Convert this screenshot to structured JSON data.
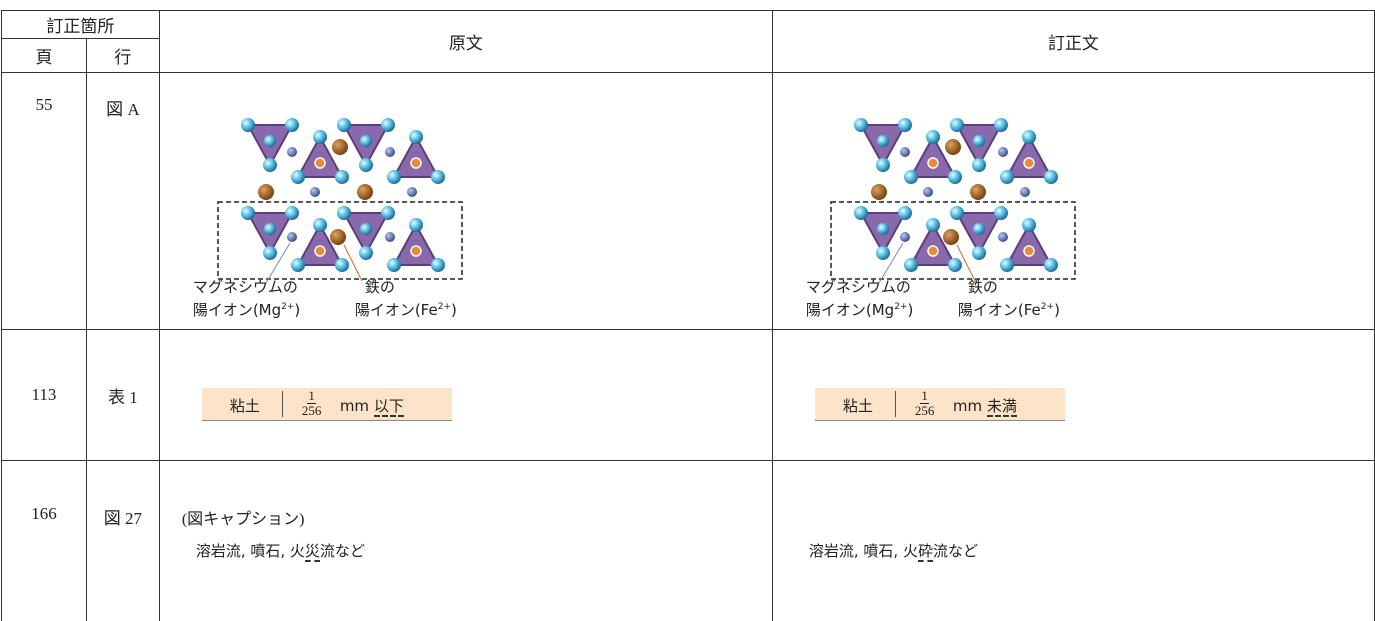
{
  "header": {
    "location": "訂正箇所",
    "page": "頁",
    "line": "行",
    "original": "原文",
    "corrected": "訂正文"
  },
  "rows": [
    {
      "page": "55",
      "line": "図 A",
      "original": {
        "mg_label": "マグネシウムの",
        "mg_ion": "陽イオン(Mg",
        "mg_charge": "2+",
        "mg_close": ")",
        "fe_label": "鉄の",
        "fe_ion": "陽イオン(Fe",
        "fe_charge": "2+",
        "fe_close": ")"
      },
      "corrected": {
        "mg_label": "マグネシウムの",
        "mg_ion": "陽イオン(Mg",
        "mg_charge": "2+",
        "mg_close": ")",
        "fe_label": "鉄の",
        "fe_ion": "陽イオン(Fe",
        "fe_charge": "2+",
        "fe_close": ")"
      }
    },
    {
      "page": "113",
      "line": "表 1",
      "original": {
        "term": "粘土",
        "numerator": "1",
        "denominator": "256",
        "unit": "mm",
        "qualifier": "以下"
      },
      "corrected": {
        "term": "粘土",
        "numerator": "1",
        "denominator": "256",
        "unit": "mm",
        "qualifier": "未満"
      }
    },
    {
      "page": "166",
      "line": "図 27",
      "original": {
        "note": "(図キャプション)",
        "before": "溶岩流, 噴石, 火",
        "marked": "災",
        "after": "流など"
      },
      "corrected": {
        "before": "溶岩流, 噴石, 火",
        "marked": "砕",
        "after": "流など"
      }
    }
  ]
}
